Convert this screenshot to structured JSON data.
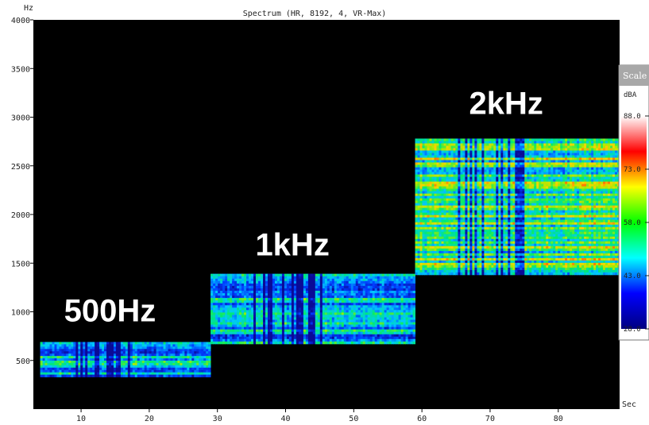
{
  "chart_data": {
    "type": "heatmap",
    "title": "Spectrum (HR, 8192, 4, VR-Max)",
    "xlabel": "Sec",
    "ylabel": "Hz",
    "xlim": [
      3,
      89
    ],
    "ylim": [
      0,
      4000
    ],
    "x_ticks": [
      10,
      20,
      30,
      40,
      50,
      60,
      70,
      80
    ],
    "y_ticks": [
      500,
      1000,
      1500,
      2000,
      2500,
      3000,
      3500,
      4000
    ],
    "background": "#000000",
    "bands": [
      {
        "label": "500Hz",
        "x_start": 4,
        "x_end": 29,
        "y_low": 330,
        "y_high": 690,
        "level": 0.45
      },
      {
        "label": "1kHz",
        "x_start": 29,
        "x_end": 59,
        "y_low": 670,
        "y_high": 1390,
        "level": 0.4
      },
      {
        "label": "2kHz",
        "x_start": 59,
        "x_end": 89,
        "y_low": 1380,
        "y_high": 2780,
        "level": 0.62
      }
    ],
    "colorbar": {
      "header": "Scale",
      "unit": "dBA",
      "ticks": [
        "88.0",
        "73.0",
        "58.0",
        "43.0",
        "28.0"
      ],
      "min": 28,
      "max": 88,
      "colors": [
        "#ffffff",
        "#ff0000",
        "#ffff00",
        "#00ff00",
        "#00ffff",
        "#0000ff",
        "#000080"
      ]
    }
  }
}
